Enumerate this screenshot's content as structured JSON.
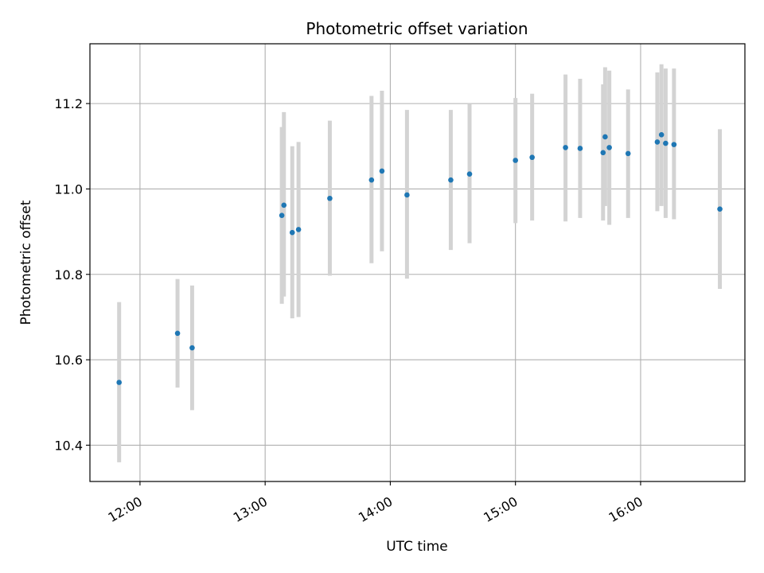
{
  "chart_data": {
    "type": "scatter",
    "title": "Photometric offset variation",
    "xlabel": "UTC time",
    "ylabel": "Photometric offset",
    "x_axis_type": "time",
    "xlim": [
      "11:36",
      "16:50"
    ],
    "ylim": [
      10.315,
      11.34
    ],
    "x_ticks": [
      "12:00",
      "13:00",
      "14:00",
      "15:00",
      "16:00"
    ],
    "y_ticks": [
      "10.4",
      "10.6",
      "10.8",
      "11.0",
      "11.2"
    ],
    "grid": true,
    "marker_color": "#1f77b4",
    "errorbar_color": "#d3d3d3",
    "points": [
      {
        "time": "11:50",
        "y": 10.547,
        "low": 10.36,
        "high": 10.735
      },
      {
        "time": "12:18",
        "y": 10.662,
        "low": 10.535,
        "high": 10.789
      },
      {
        "time": "12:25",
        "y": 10.628,
        "low": 10.482,
        "high": 10.774
      },
      {
        "time": "13:08",
        "y": 10.938,
        "low": 10.731,
        "high": 11.145
      },
      {
        "time": "13:09",
        "y": 10.962,
        "low": 10.748,
        "high": 11.18
      },
      {
        "time": "13:13",
        "y": 10.898,
        "low": 10.697,
        "high": 11.1
      },
      {
        "time": "13:16",
        "y": 10.905,
        "low": 10.7,
        "high": 11.11
      },
      {
        "time": "13:31",
        "y": 10.978,
        "low": 10.797,
        "high": 11.16
      },
      {
        "time": "13:51",
        "y": 11.021,
        "low": 10.826,
        "high": 11.218
      },
      {
        "time": "13:56",
        "y": 11.042,
        "low": 10.854,
        "high": 11.23
      },
      {
        "time": "14:08",
        "y": 10.986,
        "low": 10.79,
        "high": 11.185
      },
      {
        "time": "14:29",
        "y": 11.021,
        "low": 10.857,
        "high": 11.185
      },
      {
        "time": "14:38",
        "y": 11.035,
        "low": 10.873,
        "high": 11.2
      },
      {
        "time": "15:00",
        "y": 11.067,
        "low": 10.92,
        "high": 11.213
      },
      {
        "time": "15:08",
        "y": 11.074,
        "low": 10.926,
        "high": 11.223
      },
      {
        "time": "15:24",
        "y": 11.097,
        "low": 10.924,
        "high": 11.268
      },
      {
        "time": "15:31",
        "y": 11.095,
        "low": 10.932,
        "high": 11.258
      },
      {
        "time": "15:42",
        "y": 11.085,
        "low": 10.926,
        "high": 11.245
      },
      {
        "time": "15:43",
        "y": 11.122,
        "low": 10.96,
        "high": 11.285
      },
      {
        "time": "15:45",
        "y": 11.097,
        "low": 10.916,
        "high": 11.277
      },
      {
        "time": "15:54",
        "y": 11.083,
        "low": 10.932,
        "high": 11.233
      },
      {
        "time": "16:08",
        "y": 11.11,
        "low": 10.948,
        "high": 11.273
      },
      {
        "time": "16:10",
        "y": 11.127,
        "low": 10.96,
        "high": 11.292
      },
      {
        "time": "16:12",
        "y": 11.107,
        "low": 10.932,
        "high": 11.282
      },
      {
        "time": "16:16",
        "y": 11.104,
        "low": 10.929,
        "high": 11.282
      },
      {
        "time": "16:38",
        "y": 10.953,
        "low": 10.766,
        "high": 11.14
      }
    ]
  }
}
